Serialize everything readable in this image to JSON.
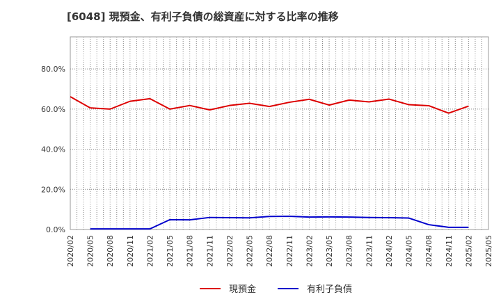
{
  "chart_data": {
    "type": "line",
    "title": "[6048]  現預金、有利子負債の総資産に対する比率の推移",
    "xlabel": "",
    "ylabel": "",
    "ylim": [
      0,
      96
    ],
    "y_ticks": [
      "0.0%",
      "20.0%",
      "40.0%",
      "60.0%",
      "80.0%"
    ],
    "x": [
      "2020/02",
      "2020/05",
      "2020/08",
      "2020/11",
      "2021/02",
      "2021/05",
      "2021/08",
      "2021/11",
      "2022/02",
      "2022/05",
      "2022/08",
      "2022/11",
      "2023/02",
      "2023/05",
      "2023/08",
      "2023/11",
      "2024/02",
      "2024/05",
      "2024/08",
      "2024/11",
      "2025/02",
      "2025/05"
    ],
    "series": [
      {
        "name": "現預金",
        "color": "#dd0000",
        "values": [
          66.2,
          60.6,
          60.0,
          63.9,
          65.2,
          60.0,
          61.8,
          59.6,
          61.8,
          62.9,
          61.3,
          63.4,
          64.9,
          62.0,
          64.5,
          63.6,
          65.0,
          62.2,
          61.7,
          58.0,
          61.5,
          null
        ]
      },
      {
        "name": "有利子負債",
        "color": "#0000cc",
        "values": [
          null,
          0.3,
          0.3,
          0.3,
          0.3,
          4.9,
          4.8,
          6.0,
          5.9,
          5.8,
          6.5,
          6.6,
          6.2,
          6.3,
          6.2,
          6.0,
          5.9,
          5.7,
          2.4,
          1.1,
          1.1,
          null
        ]
      }
    ]
  }
}
